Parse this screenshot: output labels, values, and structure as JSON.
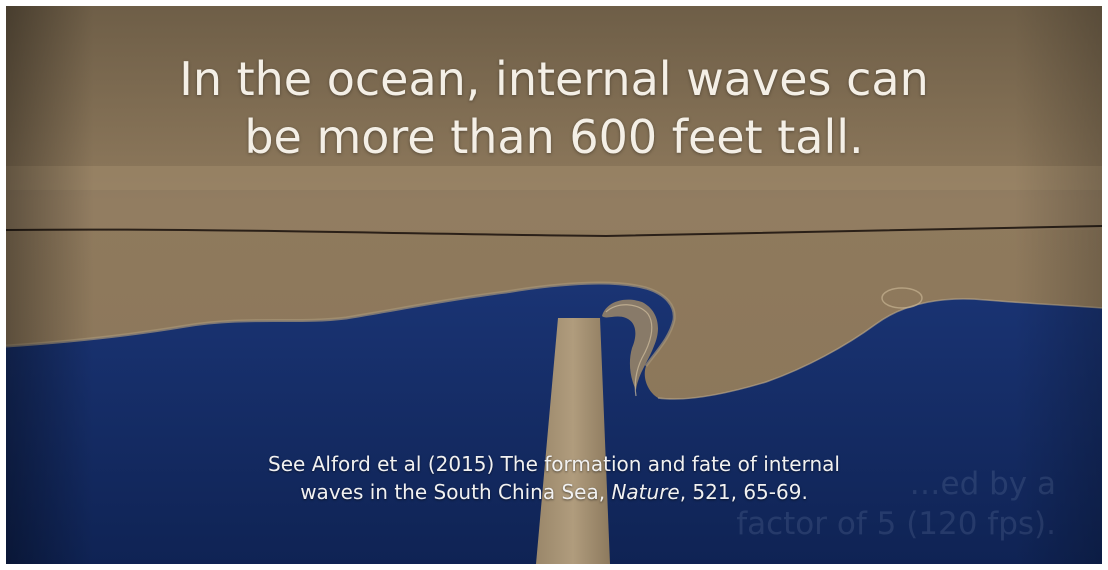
{
  "captions": {
    "headline": {
      "line1": "In the ocean, internal waves can",
      "line2": "be more than 600 feet tall."
    },
    "citation": {
      "line1": "See Alford et al (2015) The formation and fate of internal",
      "line2_before": "waves in the South China Sea, ",
      "line2_journal": "Nature",
      "line2_after": ", 521, 65-69."
    },
    "faded_overlay": {
      "line1": "…ed by a",
      "line2": "factor of 5 (120 fps)."
    }
  },
  "colors": {
    "upper_layer": "#8a7659",
    "light_band": "#a18c6c",
    "lower_layer": "#142a63",
    "interface_line": "#2a2018"
  }
}
